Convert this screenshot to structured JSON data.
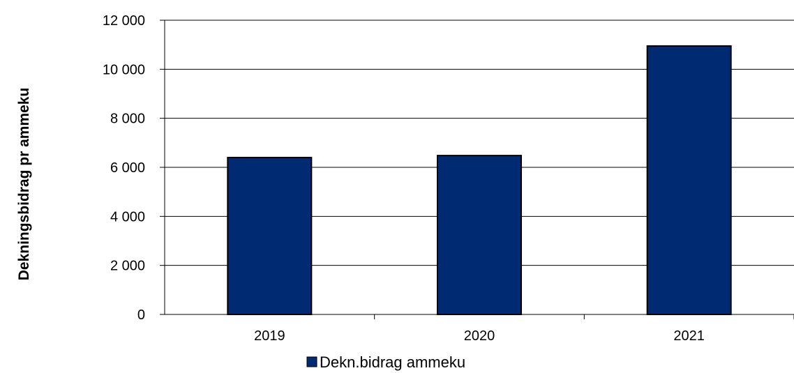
{
  "chart_data": {
    "type": "bar",
    "categories": [
      "2019",
      "2020",
      "2021"
    ],
    "series": [
      {
        "name": "Dekn.bidrag ammeku",
        "values": [
          6400,
          6480,
          10950
        ],
        "color": "#002A72"
      }
    ],
    "ylabel": "Dekningsbidrag pr ammeku",
    "xlabel": "",
    "ylim": [
      0,
      12000
    ],
    "yticks": [
      0,
      2000,
      4000,
      6000,
      8000,
      10000,
      12000
    ],
    "ytick_labels": [
      "0",
      "2 000",
      "4 000",
      "6 000",
      "8 000",
      "10 000",
      "12 000"
    ],
    "grid": true,
    "legend_position": "bottom-center"
  }
}
